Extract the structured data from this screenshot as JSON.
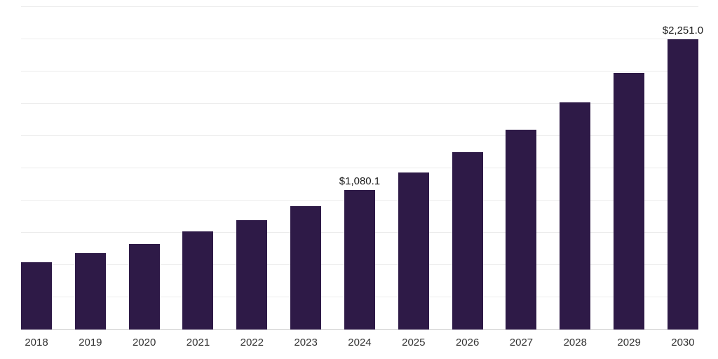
{
  "chart_data": {
    "type": "bar",
    "title": "",
    "xlabel": "",
    "ylabel": "",
    "categories": [
      "2018",
      "2019",
      "2020",
      "2021",
      "2022",
      "2023",
      "2024",
      "2025",
      "2026",
      "2027",
      "2028",
      "2029",
      "2030"
    ],
    "values": [
      520,
      590,
      665,
      760,
      850,
      955,
      1080.1,
      1220,
      1375,
      1550,
      1760,
      1990,
      2251.0
    ],
    "data_labels": [
      "",
      "",
      "",
      "",
      "",
      "",
      "$1,080.1",
      "",
      "",
      "",
      "",
      "",
      "$2,251.0"
    ],
    "ylim": [
      0,
      2500
    ],
    "grid_step": 250,
    "grid": "horizontal",
    "legend_position": "none",
    "bar_color": "#2E1A47",
    "gridline_color": "#ececec",
    "baseline_color": "#c9c9c9",
    "label_color": "#1a1a1a",
    "tick_label_color": "#333333"
  }
}
